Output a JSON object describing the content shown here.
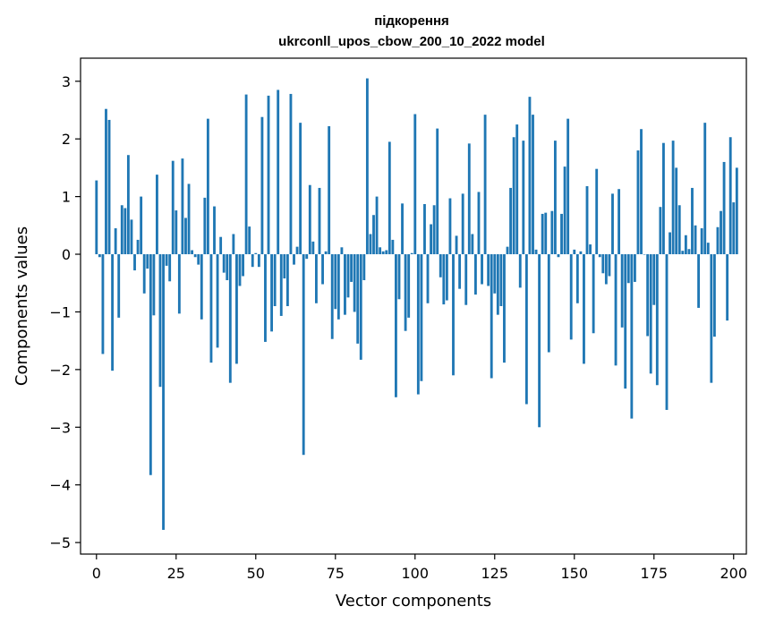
{
  "chart_data": {
    "type": "bar",
    "title": "підкорення",
    "subtitle": "ukrconll_upos_cbow_200_10_2022 model",
    "xlabel": "Vector components",
    "ylabel": "Components values",
    "xlim": [
      -5,
      204
    ],
    "ylim": [
      -5.2,
      3.4
    ],
    "xticks": [
      0,
      25,
      50,
      75,
      100,
      125,
      150,
      175,
      200
    ],
    "yticks": [
      -5,
      -4,
      -3,
      -2,
      -1,
      0,
      1,
      2,
      3
    ],
    "grid": false,
    "bar_color": "#1f77b4",
    "values": [
      1.28,
      -0.05,
      -1.73,
      2.52,
      2.33,
      -2.02,
      0.45,
      -1.1,
      0.85,
      0.8,
      1.72,
      0.6,
      -0.28,
      0.25,
      1.0,
      -0.68,
      -0.25,
      -3.83,
      -1.06,
      1.38,
      -2.3,
      -4.78,
      -0.2,
      -0.47,
      1.62,
      0.76,
      -1.03,
      1.66,
      0.63,
      1.22,
      0.07,
      -0.05,
      -0.18,
      -1.13,
      0.98,
      2.35,
      -1.88,
      0.83,
      -1.62,
      0.3,
      -0.32,
      -0.45,
      -2.23,
      0.35,
      -1.9,
      -0.55,
      -0.38,
      2.77,
      0.48,
      -0.22,
      0.02,
      -0.22,
      2.38,
      -1.52,
      2.75,
      -1.34,
      -0.9,
      2.85,
      -1.07,
      -0.42,
      -0.9,
      2.78,
      -0.18,
      0.13,
      2.28,
      -3.48,
      -0.08,
      1.2,
      0.22,
      -0.85,
      1.15,
      -0.52,
      0.05,
      2.22,
      -1.47,
      -0.95,
      -1.13,
      0.12,
      -1.05,
      -0.75,
      -0.48,
      -1.0,
      -1.55,
      -1.83,
      -0.45,
      3.05,
      0.35,
      0.68,
      1.0,
      0.12,
      0.05,
      0.07,
      1.95,
      0.25,
      -2.48,
      -0.78,
      0.88,
      -1.33,
      -1.1,
      0.02,
      2.43,
      -2.43,
      -2.2,
      0.87,
      -0.85,
      0.52,
      0.85,
      2.18,
      -0.4,
      -0.87,
      -0.8,
      0.97,
      -2.1,
      0.32,
      -0.6,
      1.05,
      -0.88,
      1.92,
      0.35,
      -0.7,
      1.08,
      -0.52,
      2.42,
      -0.55,
      -2.15,
      -0.68,
      -1.05,
      -0.9,
      -1.88,
      0.13,
      1.15,
      2.03,
      2.25,
      -0.58,
      1.97,
      -2.6,
      2.73,
      2.42,
      0.08,
      -3.0,
      0.7,
      0.72,
      -1.7,
      0.75,
      1.97,
      -0.05,
      0.7,
      1.52,
      2.35,
      -1.48,
      0.08,
      -0.85,
      0.05,
      -1.9,
      1.18,
      0.17,
      -1.37,
      1.48,
      -0.05,
      -0.33,
      -0.52,
      -0.38,
      1.05,
      -1.93,
      1.13,
      -1.27,
      -2.33,
      -0.5,
      -2.85,
      -0.48,
      1.8,
      2.17,
      0.0,
      -1.42,
      -2.07,
      -0.88,
      -2.27,
      0.82,
      1.93,
      -2.7,
      0.38,
      1.97,
      1.5,
      0.85,
      0.06,
      0.33,
      0.09,
      1.15,
      0.5,
      -0.93,
      0.45,
      2.28,
      0.2,
      -2.23,
      -1.43,
      0.47,
      0.75,
      1.6,
      -1.15,
      2.03,
      0.9,
      1.5
    ]
  }
}
